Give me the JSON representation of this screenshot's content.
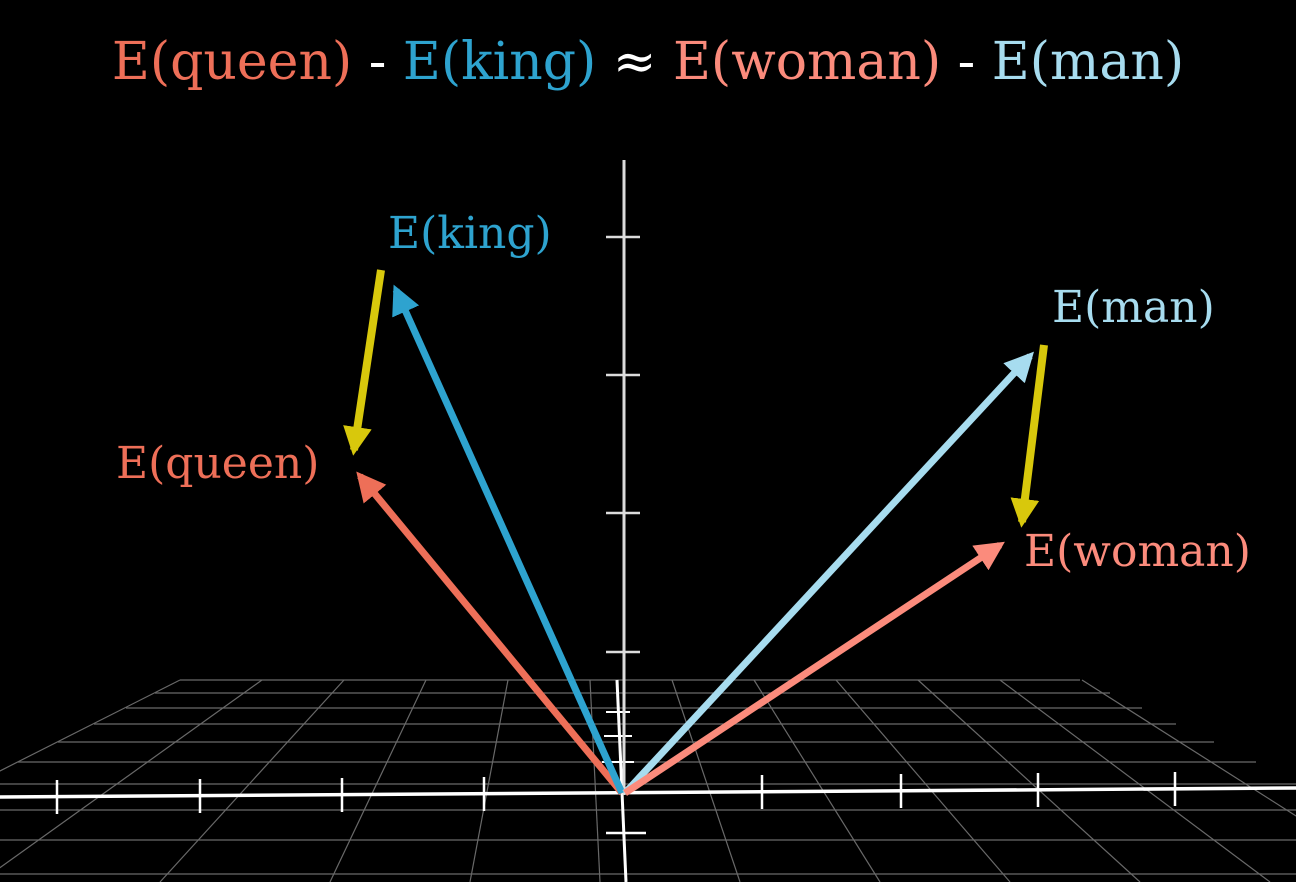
{
  "colors": {
    "background": "#000000",
    "queen": "#ee6f58",
    "king": "#2ea3cf",
    "woman": "#fb8b7c",
    "man": "#a7dcef",
    "difference": "#d8c80c",
    "grid": "#8c8c8c",
    "axis": "#ffffff"
  },
  "equation": {
    "term1": "E(queen)",
    "op1": " - ",
    "term2": "E(king)",
    "approx": " ≈ ",
    "term3": "E(woman)",
    "op2": " - ",
    "term4": "E(man)"
  },
  "labels": {
    "king": "E(king)",
    "queen": "E(queen)",
    "man": "E(man)",
    "woman": "E(woman)"
  }
}
